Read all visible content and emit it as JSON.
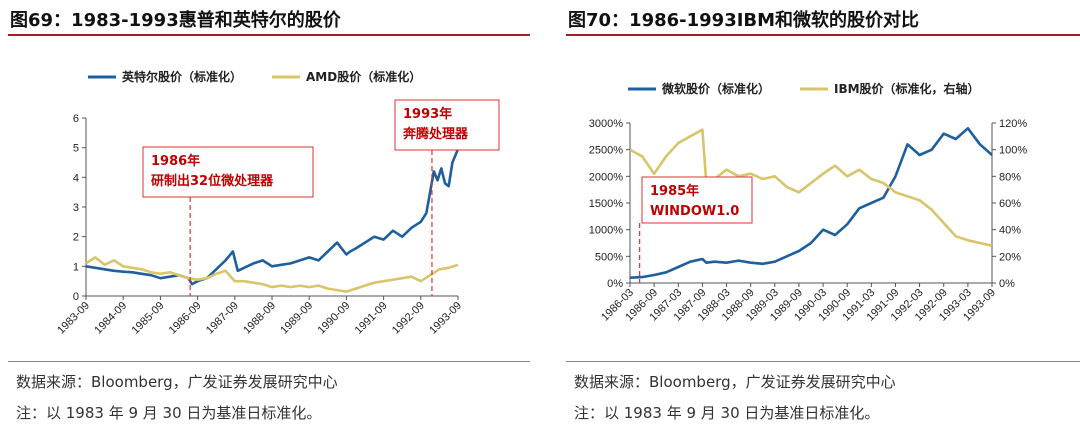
{
  "left": {
    "title": "图69：1983-1993惠普和英特尔的股价",
    "source": "数据来源：Bloomberg，广发证券发展研究中心",
    "note": "注：以 1983 年 9 月 30 日为基准日标准化。"
  },
  "right": {
    "title": "图70：1986-1993IBM和微软的股价对比",
    "source": "数据来源：Bloomberg，广发证券发展研究中心",
    "note": "注：以 1983 年 9 月 30 日为基准日标准化。"
  },
  "colors": {
    "blue": "#1f5f9e",
    "gold": "#d8c46a",
    "red": "#c00000",
    "rule": "#a31f24"
  },
  "chart_data": [
    {
      "type": "line",
      "title": "",
      "xlabel": "",
      "ylabel": "",
      "ylim": [
        0,
        6
      ],
      "y_ticks": [
        "0",
        "1",
        "2",
        "3",
        "4",
        "5",
        "6"
      ],
      "x_ticks": [
        "1983-09",
        "1984-09",
        "1985-09",
        "1986-09",
        "1987-09",
        "1988-09",
        "1989-09",
        "1990-09",
        "1991-09",
        "1992-09",
        "1993-09"
      ],
      "x_range": [
        1983.75,
        1993.75
      ],
      "grid": false,
      "legend_position": "top",
      "series": [
        {
          "name": "英特尔股价（标准化）",
          "color": "#1f5f9e",
          "x": [
            1983.75,
            1984.0,
            1984.25,
            1984.5,
            1984.75,
            1985.0,
            1985.25,
            1985.5,
            1985.75,
            1986.0,
            1986.25,
            1986.5,
            1986.6,
            1986.75,
            1987.0,
            1987.25,
            1987.5,
            1987.7,
            1987.83,
            1988.0,
            1988.25,
            1988.5,
            1988.75,
            1989.0,
            1989.25,
            1989.5,
            1989.75,
            1990.0,
            1990.25,
            1990.5,
            1990.75,
            1990.85,
            1991.0,
            1991.25,
            1991.5,
            1991.75,
            1992.0,
            1992.25,
            1992.5,
            1992.75,
            1992.9,
            1993.0,
            1993.1,
            1993.2,
            1993.3,
            1993.4,
            1993.5,
            1993.6,
            1993.75
          ],
          "values": [
            1.0,
            0.95,
            0.9,
            0.85,
            0.82,
            0.8,
            0.75,
            0.7,
            0.6,
            0.65,
            0.7,
            0.6,
            0.4,
            0.5,
            0.6,
            0.9,
            1.2,
            1.5,
            0.85,
            0.95,
            1.1,
            1.2,
            1.0,
            1.05,
            1.1,
            1.2,
            1.3,
            1.2,
            1.5,
            1.8,
            1.4,
            1.5,
            1.6,
            1.8,
            2.0,
            1.9,
            2.2,
            2.0,
            2.3,
            2.5,
            2.8,
            3.5,
            4.2,
            3.9,
            4.3,
            3.8,
            3.7,
            4.5,
            4.95
          ]
        },
        {
          "name": "AMD股价（标准化）",
          "color": "#d8c46a",
          "x": [
            1983.75,
            1984.0,
            1984.25,
            1984.5,
            1984.75,
            1985.0,
            1985.25,
            1985.5,
            1985.75,
            1986.0,
            1986.25,
            1986.5,
            1986.75,
            1987.0,
            1987.25,
            1987.5,
            1987.75,
            1988.0,
            1988.25,
            1988.5,
            1988.75,
            1989.0,
            1989.25,
            1989.5,
            1989.75,
            1990.0,
            1990.25,
            1990.5,
            1990.75,
            1991.0,
            1991.25,
            1991.5,
            1991.75,
            1992.0,
            1992.25,
            1992.5,
            1992.75,
            1993.0,
            1993.25,
            1993.5,
            1993.75
          ],
          "values": [
            1.1,
            1.3,
            1.05,
            1.2,
            1.0,
            0.95,
            0.9,
            0.8,
            0.75,
            0.8,
            0.7,
            0.6,
            0.55,
            0.6,
            0.75,
            0.85,
            0.5,
            0.5,
            0.45,
            0.4,
            0.3,
            0.35,
            0.3,
            0.35,
            0.3,
            0.35,
            0.25,
            0.2,
            0.15,
            0.25,
            0.35,
            0.45,
            0.5,
            0.55,
            0.6,
            0.65,
            0.5,
            0.7,
            0.9,
            0.95,
            1.05
          ]
        }
      ],
      "annotations": [
        {
          "x": 1986.55,
          "lines": [
            "1986年",
            "研制出32位微处理器"
          ]
        },
        {
          "x": 1993.05,
          "lines": [
            "1993年",
            "奔腾处理器"
          ]
        }
      ]
    },
    {
      "type": "line",
      "title": "",
      "xlabel": "",
      "ylabel": "",
      "ylim": [
        0,
        3000
      ],
      "y_ticks": [
        "0%",
        "500%",
        "1000%",
        "1500%",
        "2000%",
        "2500%",
        "3000%"
      ],
      "y2lim": [
        0,
        120
      ],
      "y2_ticks": [
        "0%",
        "20%",
        "40%",
        "60%",
        "80%",
        "100%",
        "120%"
      ],
      "x_ticks": [
        "1986-03",
        "1986-09",
        "1987-03",
        "1987-09",
        "1988-03",
        "1988-09",
        "1989-03",
        "1989-09",
        "1990-03",
        "1990-09",
        "1991-03",
        "1991-09",
        "1992-03",
        "1992-09",
        "1993-03",
        "1993-09"
      ],
      "x_range": [
        1986.25,
        1993.75
      ],
      "grid": false,
      "legend_position": "top",
      "series": [
        {
          "name": "微软股价（标准化）",
          "axis": "left",
          "color": "#1f5f9e",
          "x": [
            1986.25,
            1986.5,
            1986.75,
            1987.0,
            1987.25,
            1987.5,
            1987.75,
            1987.83,
            1988.0,
            1988.25,
            1988.5,
            1988.75,
            1989.0,
            1989.25,
            1989.5,
            1989.75,
            1990.0,
            1990.25,
            1990.5,
            1990.75,
            1991.0,
            1991.25,
            1991.5,
            1991.75,
            1992.0,
            1992.25,
            1992.5,
            1992.75,
            1993.0,
            1993.25,
            1993.5,
            1993.75
          ],
          "values": [
            100,
            110,
            150,
            200,
            300,
            400,
            450,
            380,
            400,
            380,
            420,
            380,
            360,
            400,
            500,
            600,
            750,
            1000,
            900,
            1100,
            1400,
            1500,
            1600,
            2000,
            2600,
            2400,
            2500,
            2800,
            2700,
            2900,
            2600,
            2400
          ]
        },
        {
          "name": "IBM股价（标准化，右轴）",
          "axis": "right",
          "color": "#d8c46a",
          "x": [
            1986.25,
            1986.5,
            1986.75,
            1987.0,
            1987.25,
            1987.5,
            1987.75,
            1987.83,
            1988.0,
            1988.25,
            1988.5,
            1988.75,
            1989.0,
            1989.25,
            1989.5,
            1989.75,
            1990.0,
            1990.25,
            1990.5,
            1990.75,
            1991.0,
            1991.25,
            1991.5,
            1991.75,
            1992.0,
            1992.25,
            1992.5,
            1992.75,
            1993.0,
            1993.25,
            1993.5,
            1993.75
          ],
          "values": [
            100,
            95,
            82,
            95,
            105,
            110,
            115,
            75,
            78,
            85,
            80,
            82,
            78,
            80,
            72,
            68,
            75,
            82,
            88,
            80,
            85,
            78,
            75,
            68,
            65,
            62,
            55,
            45,
            35,
            32,
            30,
            28
          ]
        }
      ],
      "annotations": [
        {
          "x": 1986.45,
          "lines": [
            "1985年",
            "WINDOW1.0"
          ]
        }
      ]
    }
  ]
}
